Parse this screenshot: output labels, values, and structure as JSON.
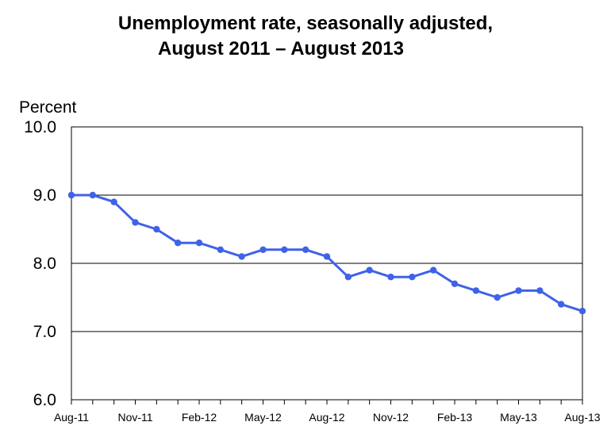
{
  "chart_data": {
    "type": "line",
    "title_line1": "Unemployment rate, seasonally adjusted,",
    "title_line2": "August  2011 – August 2013",
    "ylabel": "Percent",
    "xlabel": "",
    "ylim": [
      6.0,
      10.0
    ],
    "yticks": [
      "6.0",
      "7.0",
      "8.0",
      "9.0",
      "10.0"
    ],
    "grid": "horizontal",
    "x_tick_labels": [
      "Aug-11",
      "Nov-11",
      "Feb-12",
      "May-12",
      "Aug-12",
      "Nov-12",
      "Feb-13",
      "May-13",
      "Aug-13"
    ],
    "x": [
      "Aug-11",
      "Sep-11",
      "Oct-11",
      "Nov-11",
      "Dec-11",
      "Jan-12",
      "Feb-12",
      "Mar-12",
      "Apr-12",
      "May-12",
      "Jun-12",
      "Jul-12",
      "Aug-12",
      "Sep-12",
      "Oct-12",
      "Nov-12",
      "Dec-12",
      "Jan-13",
      "Feb-13",
      "Mar-13",
      "Apr-13",
      "May-13",
      "Jun-13",
      "Jul-13",
      "Aug-13"
    ],
    "series": [
      {
        "color": "#3f62e8",
        "values": [
          9.0,
          9.0,
          8.9,
          8.6,
          8.5,
          8.3,
          8.3,
          8.2,
          8.1,
          8.2,
          8.2,
          8.2,
          8.1,
          7.8,
          7.9,
          7.8,
          7.8,
          7.9,
          7.7,
          7.6,
          7.5,
          7.6,
          7.6,
          7.4,
          7.3
        ]
      }
    ]
  }
}
